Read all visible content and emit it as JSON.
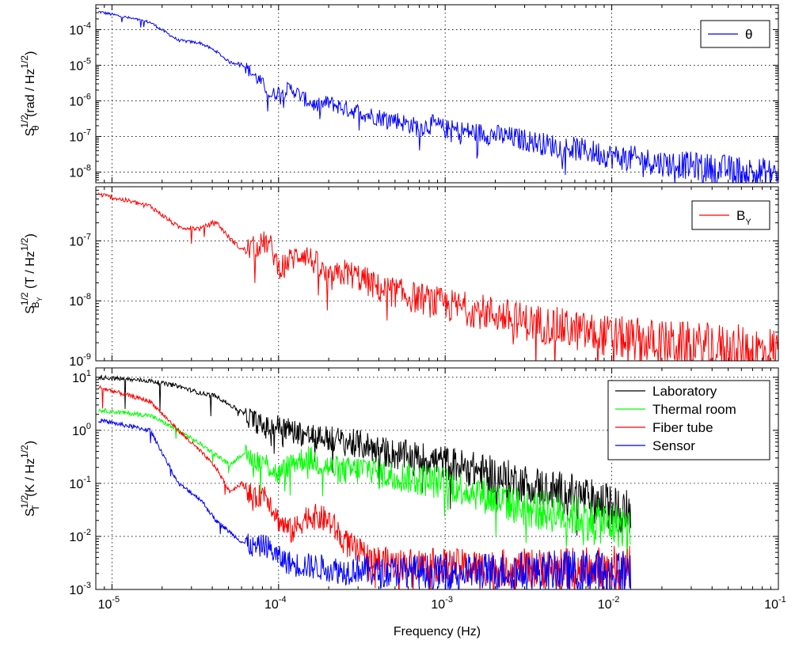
{
  "chart_data": [
    {
      "type": "line",
      "title": "",
      "xlabel": "",
      "ylabel_parts": {
        "base": "S",
        "sup": "1/2",
        "sub": "θ",
        "unit_pre": "(rad / Hz",
        "unit_sup": "1/2",
        "unit_post": ")"
      },
      "xscale": "log",
      "yscale": "log",
      "xlim": [
        8e-06,
        0.1
      ],
      "ylim": [
        5e-09,
        0.0005
      ],
      "yticks": [
        1e-08,
        1e-07,
        1e-06,
        1e-05,
        0.0001
      ],
      "grid": true,
      "legend_position": "top-right",
      "series": [
        {
          "name": "θ",
          "color": "#0000ff",
          "x": [
            8.3e-06,
            1.7e-05,
            2.5e-05,
            3.4e-05,
            4.2e-05,
            5.1e-05,
            6e-05,
            7.2e-05,
            8.3e-05,
            9e-05,
            0.0001,
            0.00012,
            0.00014,
            0.00017,
            0.0002,
            0.00025,
            0.0003,
            0.00035,
            0.0004,
            0.0005,
            0.0006,
            0.0007,
            0.00085,
            0.001,
            0.0015,
            0.002,
            0.003,
            0.004,
            0.006,
            0.008,
            0.01,
            0.015,
            0.02,
            0.03,
            0.04,
            0.05,
            0.07,
            0.1
          ],
          "y": [
            0.00032,
            0.00016,
            5e-05,
            4.2e-05,
            2.5e-05,
            1.2e-05,
            1.1e-05,
            5e-06,
            2.5e-06,
            1.4e-06,
            1.8e-06,
            2.2e-06,
            1.2e-06,
            7e-07,
            9e-07,
            6e-07,
            5e-07,
            4e-07,
            3.5e-07,
            3e-07,
            2.2e-07,
            1.8e-07,
            2.2e-07,
            1.6e-07,
            1.3e-07,
            1.1e-07,
            8e-08,
            6e-08,
            4.5e-08,
            3.5e-08,
            2.8e-08,
            2.2e-08,
            1.8e-08,
            1.5e-08,
            1.3e-08,
            1.2e-08,
            1e-08,
            9e-09
          ]
        }
      ]
    },
    {
      "type": "line",
      "title": "",
      "xlabel": "",
      "ylabel_parts": {
        "base": "S",
        "sup": "1/2",
        "sub": "B",
        "subsub": "Y",
        "unit_pre": "(T / Hz",
        "unit_sup": "1/2",
        "unit_post": ")"
      },
      "xscale": "log",
      "yscale": "log",
      "xlim": [
        8e-06,
        0.1
      ],
      "ylim": [
        1e-09,
        8e-07
      ],
      "yticks": [
        1e-09,
        1e-08,
        1e-07
      ],
      "grid": true,
      "legend_position": "top-right",
      "series": [
        {
          "name": "B",
          "name_sub": "Y",
          "color": "#ff0000",
          "x": [
            8.3e-06,
            1.7e-05,
            2.5e-05,
            3.4e-05,
            4.2e-05,
            5.1e-05,
            6e-05,
            7.2e-05,
            8.3e-05,
            9e-05,
            0.0001,
            0.00012,
            0.00014,
            0.00017,
            0.0002,
            0.00025,
            0.0003,
            0.00035,
            0.0004,
            0.0005,
            0.0006,
            0.0007,
            0.00085,
            0.001,
            0.0015,
            0.002,
            0.003,
            0.004,
            0.006,
            0.008,
            0.01,
            0.015,
            0.02,
            0.03,
            0.04,
            0.05,
            0.07,
            0.1
          ],
          "y": [
            6e-07,
            3.8e-07,
            1.7e-07,
            1.6e-07,
            2.1e-07,
            1.1e-07,
            7.2e-08,
            7.8e-08,
            9.5e-08,
            8e-08,
            3.6e-08,
            5e-08,
            6.5e-08,
            4e-08,
            2.2e-08,
            3e-08,
            2.5e-08,
            2e-08,
            1.6e-08,
            1.4e-08,
            1.2e-08,
            1.1e-08,
            9.5e-09,
            8.5e-09,
            7e-09,
            6e-09,
            4.5e-09,
            4e-09,
            3.2e-09,
            2.8e-09,
            2.5e-09,
            2.2e-09,
            2e-09,
            1.8e-09,
            1.7e-09,
            1.6e-09,
            1.5e-09,
            1.4e-09
          ]
        }
      ]
    },
    {
      "type": "line",
      "title": "",
      "xlabel": "Frequency (Hz)",
      "ylabel_parts": {
        "base": "S",
        "sup": "1/2",
        "sub": "T",
        "unit_pre": "(K / Hz",
        "unit_sup": "1/2",
        "unit_post": ")"
      },
      "xscale": "log",
      "yscale": "log",
      "xlim": [
        8e-06,
        0.1
      ],
      "ylim": [
        0.001,
        15
      ],
      "yticks": [
        0.001,
        0.01,
        0.1,
        1.0,
        10.0
      ],
      "xticks": [
        1e-05,
        0.0001,
        0.001,
        0.01,
        0.1
      ],
      "grid": true,
      "legend_position": "top-right",
      "series": [
        {
          "name": "Laboratory",
          "color": "#000000",
          "x": [
            8.3e-06,
            1.7e-05,
            2.5e-05,
            3.4e-05,
            4.2e-05,
            5.1e-05,
            6e-05,
            7.2e-05,
            8.3e-05,
            0.0001,
            0.00012,
            0.00015,
            0.0002,
            0.00025,
            0.0003,
            0.00035,
            0.0004,
            0.0005,
            0.0007,
            0.001,
            0.0015,
            0.002,
            0.003,
            0.004,
            0.006,
            0.008,
            0.01,
            0.013
          ],
          "y": [
            10,
            8.5,
            6.8,
            5.0,
            4.5,
            3.0,
            2.2,
            1.5,
            1.1,
            1.2,
            1.0,
            0.8,
            0.7,
            0.6,
            0.55,
            0.5,
            0.42,
            0.35,
            0.3,
            0.25,
            0.18,
            0.14,
            0.1,
            0.08,
            0.06,
            0.045,
            0.035,
            0.028
          ]
        },
        {
          "name": "Thermal room",
          "color": "#00ff00",
          "x": [
            8.3e-06,
            1.7e-05,
            2.5e-05,
            3.4e-05,
            4.2e-05,
            5.1e-05,
            6e-05,
            7.2e-05,
            8.3e-05,
            0.0001,
            0.00012,
            0.00015,
            0.0002,
            0.00025,
            0.0003,
            0.00035,
            0.0004,
            0.0005,
            0.0007,
            0.001,
            0.0015,
            0.002,
            0.003,
            0.004,
            0.006,
            0.008,
            0.01,
            0.013
          ],
          "y": [
            2.4,
            1.9,
            1.0,
            0.55,
            0.35,
            0.22,
            0.35,
            0.28,
            0.25,
            0.14,
            0.25,
            0.3,
            0.2,
            0.17,
            0.18,
            0.2,
            0.15,
            0.14,
            0.12,
            0.1,
            0.07,
            0.05,
            0.035,
            0.03,
            0.025,
            0.02,
            0.017,
            0.015
          ]
        },
        {
          "name": "Fiber tube",
          "color": "#ff0000",
          "x": [
            8.3e-06,
            1.7e-05,
            2.5e-05,
            3.4e-05,
            4.2e-05,
            5.1e-05,
            6e-05,
            7.2e-05,
            8.3e-05,
            0.0001,
            0.00012,
            0.00015,
            0.0002,
            0.00025,
            0.0003,
            0.00035,
            0.0004,
            0.0005,
            0.0007,
            0.001,
            0.0015,
            0.002,
            0.003,
            0.004,
            0.006,
            0.008,
            0.01,
            0.013
          ],
          "y": [
            6.5,
            3.5,
            1.0,
            0.4,
            0.2,
            0.07,
            0.1,
            0.05,
            0.07,
            0.02,
            0.012,
            0.025,
            0.02,
            0.008,
            0.005,
            0.004,
            0.0035,
            0.003,
            0.003,
            0.0028,
            0.0026,
            0.0025,
            0.0025,
            0.0025,
            0.0025,
            0.0025,
            0.0025,
            0.0025
          ]
        },
        {
          "name": "Sensor",
          "color": "#0000ff",
          "x": [
            8.3e-06,
            1.7e-05,
            2.5e-05,
            3.4e-05,
            4.2e-05,
            5.1e-05,
            6e-05,
            7.2e-05,
            8.3e-05,
            0.0001,
            0.00012,
            0.00015,
            0.0002,
            0.00025,
            0.0003,
            0.00035,
            0.0004,
            0.0005,
            0.0007,
            0.001,
            0.0015,
            0.002,
            0.003,
            0.004,
            0.006,
            0.008,
            0.01,
            0.013
          ],
          "y": [
            1.55,
            1.0,
            0.1,
            0.05,
            0.02,
            0.012,
            0.008,
            0.006,
            0.007,
            0.004,
            0.003,
            0.0028,
            0.0025,
            0.0022,
            0.0025,
            0.0022,
            0.002,
            0.0022,
            0.0022,
            0.0022,
            0.0022,
            0.0022,
            0.0022,
            0.0022,
            0.0022,
            0.0022,
            0.0022,
            0.0022
          ]
        }
      ]
    }
  ]
}
